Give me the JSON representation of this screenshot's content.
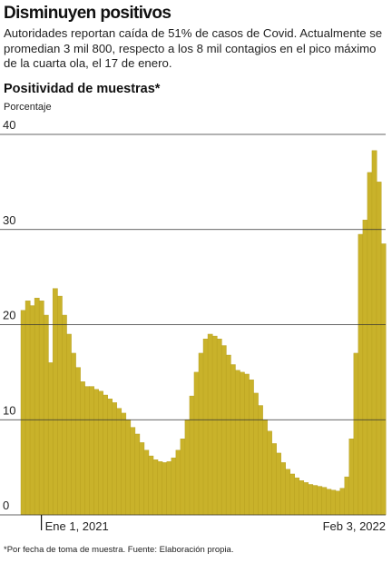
{
  "chart_data": {
    "type": "bar",
    "title": "Disminuyen positivos",
    "subtitle": "Autoridades reportan caída de 51% de casos de Covid. Actualmente se promedian 3 mil 800, respecto a los 8 mil contagios en el pico máximo de la cuarta ola, el 17 de enero.",
    "chart_title": "Positividad de muestras*",
    "y_label": "Porcentaje",
    "footnote": "*Por fecha de toma de muestra. Fuente: Elaboración propia.",
    "categories": [
      null,
      null,
      null,
      null,
      "Ene 1, 2021",
      null,
      null,
      null,
      null,
      null,
      null,
      null,
      null,
      null,
      null,
      null,
      null,
      null,
      null,
      null,
      null,
      null,
      null,
      null,
      null,
      null,
      null,
      null,
      null,
      null,
      null,
      null,
      null,
      null,
      null,
      null,
      null,
      null,
      null,
      null,
      null,
      null,
      null,
      null,
      null,
      null,
      null,
      null,
      null,
      null,
      null,
      null,
      null,
      null,
      null,
      null,
      null,
      null,
      null,
      null,
      null,
      null,
      null,
      null,
      null,
      null,
      null,
      null,
      null,
      null,
      null,
      null,
      null,
      null,
      null,
      null,
      null,
      null,
      null,
      "Feb 3, 2022"
    ],
    "values": [
      21.5,
      22.5,
      22,
      22.8,
      22.5,
      21,
      16,
      23.8,
      23,
      21,
      19,
      17,
      15.5,
      14,
      13.5,
      13.5,
      13.2,
      13,
      12.6,
      12.2,
      11.8,
      11.2,
      10.7,
      10,
      9.2,
      8.5,
      7.6,
      6.8,
      6.2,
      5.8,
      5.6,
      5.5,
      5.6,
      6,
      6.8,
      8,
      10,
      12.5,
      15,
      17,
      18.5,
      19,
      18.8,
      18.5,
      17.8,
      16.8,
      15.8,
      15.2,
      15,
      14.8,
      14.2,
      12.8,
      11.5,
      10,
      8.8,
      7.5,
      6.5,
      5.5,
      4.8,
      4.3,
      3.9,
      3.6,
      3.4,
      3.2,
      3.1,
      3,
      2.9,
      2.7,
      2.6,
      2.5,
      2.8,
      4,
      8,
      17,
      29.5,
      31,
      36,
      38.3,
      35,
      28.5
    ],
    "color": "#c9b22a",
    "ylim": [
      0,
      40
    ],
    "yticks": [
      0,
      10,
      20,
      30,
      40
    ],
    "grid": true
  }
}
